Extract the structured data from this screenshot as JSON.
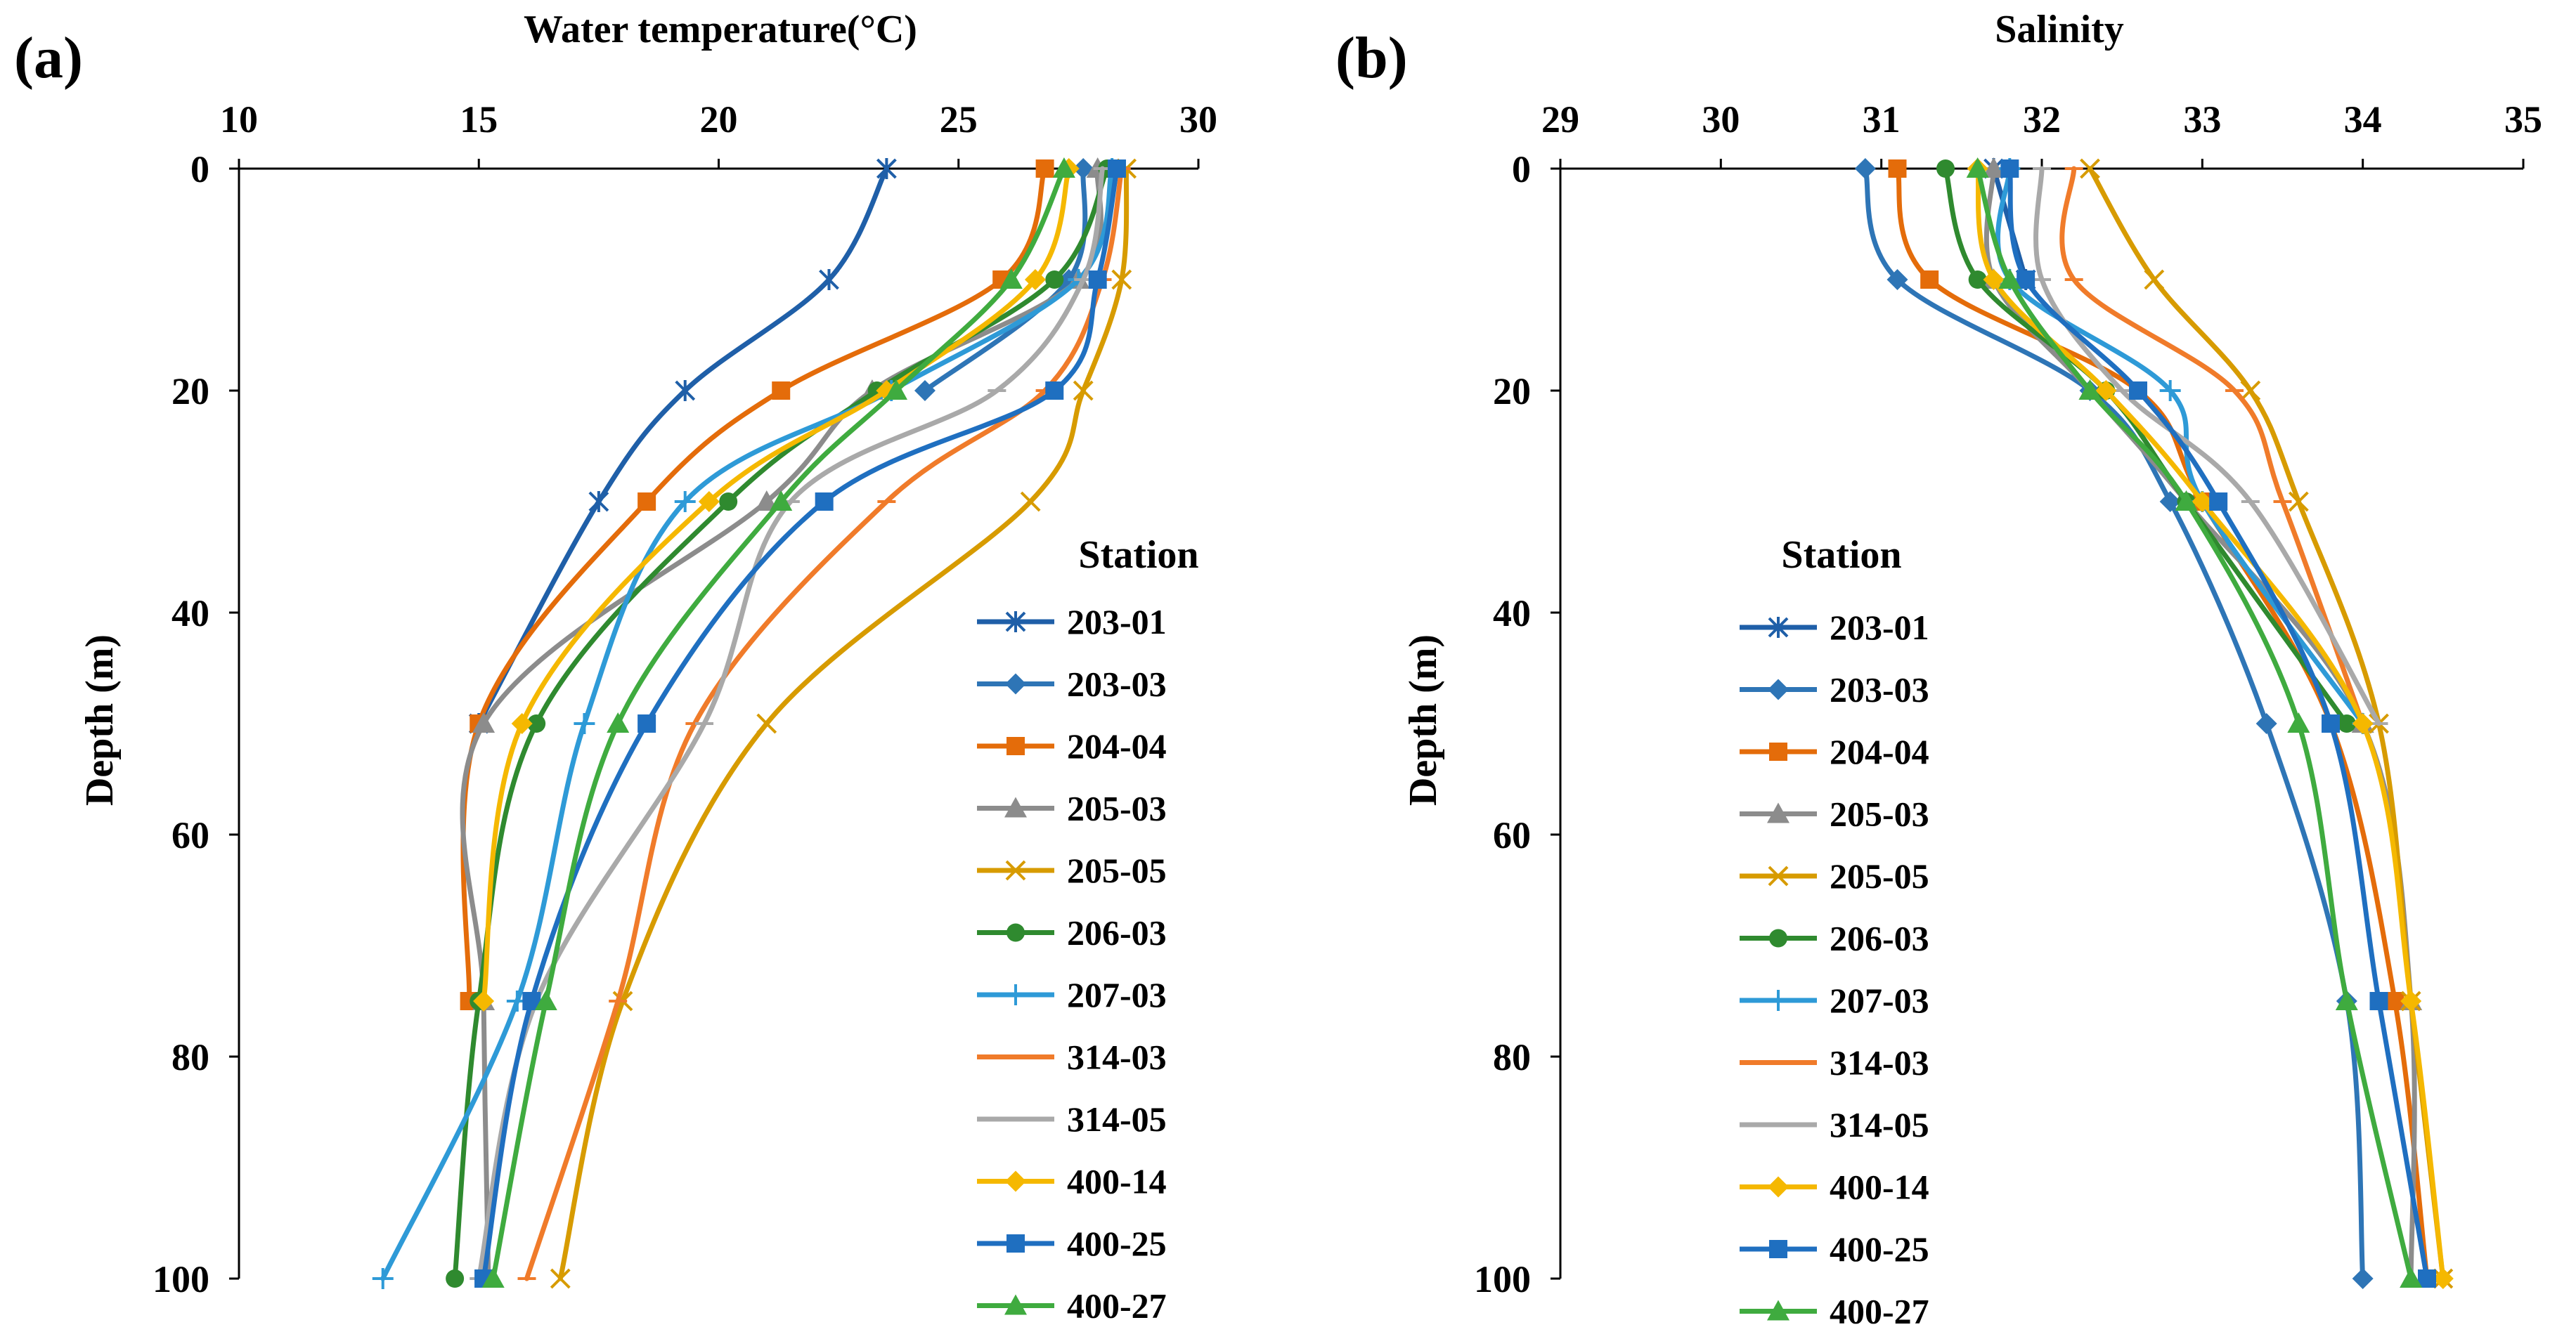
{
  "panels": [
    {
      "label": "(a)",
      "title": "Water temperature(°C)",
      "ylabel": "Depth (m)",
      "legend_title": "Station"
    },
    {
      "label": "(b)",
      "title": "Salinity",
      "ylabel": "Depth (m)",
      "legend_title": "Station"
    }
  ],
  "chart_data": [
    {
      "type": "line",
      "label": "(a)",
      "title": "Water temperature(°C)",
      "xlabel": "Water temperature(°C)",
      "ylabel": "Depth (m)",
      "x_axis_position": "top",
      "y_inverted": true,
      "xlim": [
        10,
        30
      ],
      "ylim": [
        0,
        100
      ],
      "xticks": [
        10,
        15,
        20,
        25,
        30
      ],
      "yticks": [
        0,
        20,
        40,
        60,
        80,
        100
      ],
      "grid": false,
      "legend": {
        "title": "Station",
        "position": "lower-right"
      },
      "series": [
        {
          "name": "203-01",
          "color": "#1f5fa8",
          "marker": "star",
          "points": [
            [
              23.5,
              0
            ],
            [
              22.3,
              10
            ],
            [
              19.3,
              20
            ],
            [
              17.5,
              30
            ],
            [
              15.0,
              50
            ]
          ]
        },
        {
          "name": "203-03",
          "color": "#2e75b6",
          "marker": "diamond",
          "points": [
            [
              27.6,
              0
            ],
            [
              27.3,
              10
            ],
            [
              24.3,
              20
            ]
          ]
        },
        {
          "name": "204-04",
          "color": "#e46c0a",
          "marker": "square",
          "points": [
            [
              26.8,
              0
            ],
            [
              25.9,
              10
            ],
            [
              21.3,
              20
            ],
            [
              18.5,
              30
            ],
            [
              15.0,
              50
            ],
            [
              14.8,
              75
            ]
          ]
        },
        {
          "name": "205-03",
          "color": "#8c8c8c",
          "marker": "triangle",
          "points": [
            [
              27.9,
              0
            ],
            [
              27.5,
              10
            ],
            [
              23.2,
              20
            ],
            [
              21.0,
              30
            ],
            [
              15.1,
              50
            ],
            [
              15.1,
              75
            ],
            [
              15.2,
              100
            ]
          ]
        },
        {
          "name": "205-05",
          "color": "#d79b00",
          "marker": "x",
          "points": [
            [
              28.5,
              0
            ],
            [
              28.4,
              10
            ],
            [
              27.6,
              20
            ],
            [
              26.5,
              30
            ],
            [
              21.0,
              50
            ],
            [
              18.0,
              75
            ],
            [
              16.7,
              100
            ]
          ]
        },
        {
          "name": "206-03",
          "color": "#2f8a2f",
          "marker": "circle",
          "points": [
            [
              28.1,
              0
            ],
            [
              27.0,
              10
            ],
            [
              23.3,
              20
            ],
            [
              20.2,
              30
            ],
            [
              16.2,
              50
            ],
            [
              15.0,
              75
            ],
            [
              14.5,
              100
            ]
          ]
        },
        {
          "name": "207-03",
          "color": "#2e9ad7",
          "marker": "plus",
          "points": [
            [
              28.2,
              0
            ],
            [
              27.5,
              10
            ],
            [
              23.6,
              20
            ],
            [
              19.3,
              30
            ],
            [
              17.2,
              50
            ],
            [
              15.8,
              75
            ],
            [
              13.0,
              100
            ]
          ]
        },
        {
          "name": "314-03",
          "color": "#f07b2a",
          "marker": "dash",
          "points": [
            [
              28.4,
              0
            ],
            [
              28.0,
              10
            ],
            [
              26.8,
              20
            ],
            [
              23.5,
              30
            ],
            [
              19.5,
              50
            ],
            [
              17.9,
              75
            ],
            [
              16.0,
              100
            ]
          ]
        },
        {
          "name": "314-05",
          "color": "#a9a9a9",
          "marker": "dash",
          "points": [
            [
              28.0,
              0
            ],
            [
              27.6,
              10
            ],
            [
              25.8,
              20
            ],
            [
              21.5,
              30
            ],
            [
              19.7,
              50
            ],
            [
              16.2,
              75
            ],
            [
              15.0,
              100
            ]
          ]
        },
        {
          "name": "400-14",
          "color": "#f5b800",
          "marker": "diamond",
          "points": [
            [
              27.3,
              0
            ],
            [
              26.6,
              10
            ],
            [
              23.5,
              20
            ],
            [
              19.8,
              30
            ],
            [
              15.9,
              50
            ],
            [
              15.1,
              75
            ]
          ]
        },
        {
          "name": "400-25",
          "color": "#1f6fc0",
          "marker": "square",
          "points": [
            [
              28.3,
              0
            ],
            [
              27.9,
              10
            ],
            [
              27.0,
              20
            ],
            [
              22.2,
              30
            ],
            [
              18.5,
              50
            ],
            [
              16.1,
              75
            ],
            [
              15.1,
              100
            ]
          ]
        },
        {
          "name": "400-27",
          "color": "#3fab3f",
          "marker": "triangle",
          "points": [
            [
              27.2,
              0
            ],
            [
              26.1,
              10
            ],
            [
              23.7,
              20
            ],
            [
              21.3,
              30
            ],
            [
              17.9,
              50
            ],
            [
              16.4,
              75
            ],
            [
              15.3,
              100
            ]
          ]
        }
      ]
    },
    {
      "type": "line",
      "label": "(b)",
      "title": "Salinity",
      "xlabel": "Salinity",
      "ylabel": "Depth (m)",
      "x_axis_position": "top",
      "y_inverted": true,
      "xlim": [
        29,
        35
      ],
      "ylim": [
        0,
        100
      ],
      "xticks": [
        29,
        30,
        31,
        32,
        33,
        34,
        35
      ],
      "yticks": [
        0,
        20,
        40,
        60,
        80,
        100
      ],
      "grid": false,
      "legend": {
        "title": "Station",
        "position": "left-middle"
      },
      "series": [
        {
          "name": "203-01",
          "color": "#1f5fa8",
          "marker": "star",
          "points": [
            [
              31.7,
              0
            ],
            [
              31.9,
              10
            ]
          ]
        },
        {
          "name": "203-03",
          "color": "#2e75b6",
          "marker": "diamond",
          "points": [
            [
              30.9,
              0
            ],
            [
              31.1,
              10
            ],
            [
              32.3,
              20
            ],
            [
              32.8,
              30
            ],
            [
              33.4,
              50
            ],
            [
              33.9,
              75
            ],
            [
              34.0,
              100
            ]
          ]
        },
        {
          "name": "204-04",
          "color": "#e46c0a",
          "marker": "square",
          "points": [
            [
              31.1,
              0
            ],
            [
              31.3,
              10
            ],
            [
              32.6,
              20
            ],
            [
              33.0,
              30
            ],
            [
              33.8,
              50
            ],
            [
              34.2,
              75
            ],
            [
              34.4,
              100
            ]
          ]
        },
        {
          "name": "205-03",
          "color": "#8c8c8c",
          "marker": "triangle",
          "points": [
            [
              31.7,
              0
            ],
            [
              31.7,
              10
            ],
            [
              32.3,
              20
            ],
            [
              32.9,
              30
            ],
            [
              34.0,
              50
            ],
            [
              34.3,
              75
            ],
            [
              34.3,
              100
            ]
          ]
        },
        {
          "name": "205-05",
          "color": "#d79b00",
          "marker": "x",
          "points": [
            [
              32.3,
              0
            ],
            [
              32.7,
              10
            ],
            [
              33.3,
              20
            ],
            [
              33.6,
              30
            ],
            [
              34.1,
              50
            ],
            [
              34.3,
              75
            ],
            [
              34.5,
              100
            ]
          ]
        },
        {
          "name": "206-03",
          "color": "#2f8a2f",
          "marker": "circle",
          "points": [
            [
              31.4,
              0
            ],
            [
              31.6,
              10
            ],
            [
              32.4,
              20
            ],
            [
              32.9,
              30
            ],
            [
              33.9,
              50
            ]
          ]
        },
        {
          "name": "207-03",
          "color": "#2e9ad7",
          "marker": "plus",
          "points": [
            [
              31.8,
              0
            ],
            [
              31.8,
              10
            ],
            [
              32.8,
              20
            ],
            [
              33.0,
              30
            ],
            [
              34.0,
              50
            ]
          ]
        },
        {
          "name": "314-03",
          "color": "#f07b2a",
          "marker": "dash",
          "points": [
            [
              32.2,
              0
            ],
            [
              32.2,
              10
            ],
            [
              33.2,
              20
            ],
            [
              33.5,
              30
            ],
            [
              34.0,
              50
            ]
          ]
        },
        {
          "name": "314-05",
          "color": "#a9a9a9",
          "marker": "dash",
          "points": [
            [
              32.0,
              0
            ],
            [
              32.0,
              10
            ],
            [
              32.5,
              20
            ],
            [
              33.3,
              30
            ],
            [
              34.1,
              50
            ]
          ]
        },
        {
          "name": "400-14",
          "color": "#f5b800",
          "marker": "diamond",
          "points": [
            [
              31.6,
              0
            ],
            [
              31.7,
              10
            ],
            [
              32.4,
              20
            ],
            [
              33.0,
              30
            ],
            [
              34.0,
              50
            ],
            [
              34.3,
              75
            ],
            [
              34.5,
              100
            ]
          ]
        },
        {
          "name": "400-25",
          "color": "#1f6fc0",
          "marker": "square",
          "points": [
            [
              31.8,
              0
            ],
            [
              31.9,
              10
            ],
            [
              32.6,
              20
            ],
            [
              33.1,
              30
            ],
            [
              33.8,
              50
            ],
            [
              34.1,
              75
            ],
            [
              34.4,
              100
            ]
          ]
        },
        {
          "name": "400-27",
          "color": "#3fab3f",
          "marker": "triangle",
          "points": [
            [
              31.6,
              0
            ],
            [
              31.8,
              10
            ],
            [
              32.3,
              20
            ],
            [
              32.9,
              30
            ],
            [
              33.6,
              50
            ],
            [
              33.9,
              75
            ],
            [
              34.3,
              100
            ]
          ]
        }
      ]
    }
  ]
}
